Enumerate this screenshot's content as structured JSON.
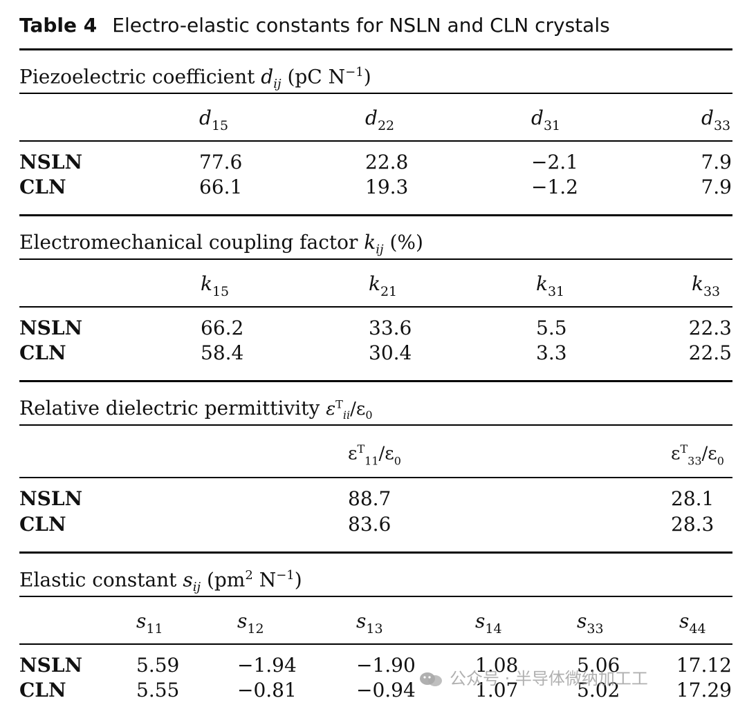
{
  "caption": {
    "label": "Table 4",
    "text": "Electro-elastic constants for NSLN and CLN crystals"
  },
  "sections": {
    "piezo": {
      "title_main": "Piezoelectric coefficient ",
      "symbol": "d",
      "symbol_sub": "ij",
      "unit_open": " (pC N",
      "unit_sup": "−1",
      "unit_close": ")",
      "columns": [
        {
          "sym": "d",
          "sub": "15"
        },
        {
          "sym": "d",
          "sub": "22"
        },
        {
          "sym": "d",
          "sub": "31"
        },
        {
          "sym": "d",
          "sub": "33"
        }
      ],
      "rows": [
        {
          "label": "NSLN",
          "values": [
            "77.6",
            "22.8",
            "−2.1",
            "7.9"
          ]
        },
        {
          "label": "CLN",
          "values": [
            "66.1",
            "19.3",
            "−1.2",
            "7.9"
          ]
        }
      ]
    },
    "coupling": {
      "title_main": "Electromechanical coupling factor ",
      "symbol": "k",
      "symbol_sub": "ij",
      "unit": " (%)",
      "columns": [
        {
          "sym": "k",
          "sub": "15"
        },
        {
          "sym": "k",
          "sub": "21"
        },
        {
          "sym": "k",
          "sub": "31"
        },
        {
          "sym": "k",
          "sub": "33"
        }
      ],
      "rows": [
        {
          "label": "NSLN",
          "values": [
            "66.2",
            "33.6",
            "5.5",
            "22.3"
          ]
        },
        {
          "label": "CLN",
          "values": [
            "58.4",
            "30.4",
            "3.3",
            "22.5"
          ]
        }
      ]
    },
    "dielectric": {
      "title_main": "Relative dielectric permittivity ",
      "symbol": "ε",
      "symbol_sup": "T",
      "symbol_sub": "ii",
      "symbol_tail": "/ε",
      "symbol_tail_sub": "0",
      "columns": [
        {
          "sym": "ε",
          "sup": "T",
          "sub": "11",
          "tail": "/ε",
          "tail_sub": "0"
        },
        {
          "sym": "ε",
          "sup": "T",
          "sub": "33",
          "tail": "/ε",
          "tail_sub": "0"
        }
      ],
      "rows": [
        {
          "label": "NSLN",
          "values": [
            "88.7",
            "28.1"
          ]
        },
        {
          "label": "CLN",
          "values": [
            "83.6",
            "28.3"
          ]
        }
      ]
    },
    "elastic": {
      "title_main": "Elastic constant ",
      "symbol": "s",
      "symbol_sub": "ij",
      "unit_open": " (pm",
      "unit_sup1": "2",
      "unit_mid": " N",
      "unit_sup2": "−1",
      "unit_close": ")",
      "columns": [
        {
          "sym": "s",
          "sub": "11"
        },
        {
          "sym": "s",
          "sub": "12"
        },
        {
          "sym": "s",
          "sub": "13"
        },
        {
          "sym": "s",
          "sub": "14"
        },
        {
          "sym": "s",
          "sub": "33"
        },
        {
          "sym": "s",
          "sub": "44"
        }
      ],
      "rows": [
        {
          "label": "NSLN",
          "values": [
            "5.59",
            "−1.94",
            "−1.90",
            "1.08",
            "5.06",
            "17.12"
          ]
        },
        {
          "label": "CLN",
          "values": [
            "5.55",
            "−0.81",
            "−0.94",
            "1.07",
            "5.02",
            "17.29"
          ]
        }
      ]
    }
  },
  "watermark": {
    "text": "公众号 · 半导体微纳加工工",
    "icon": "wechat-icon"
  }
}
